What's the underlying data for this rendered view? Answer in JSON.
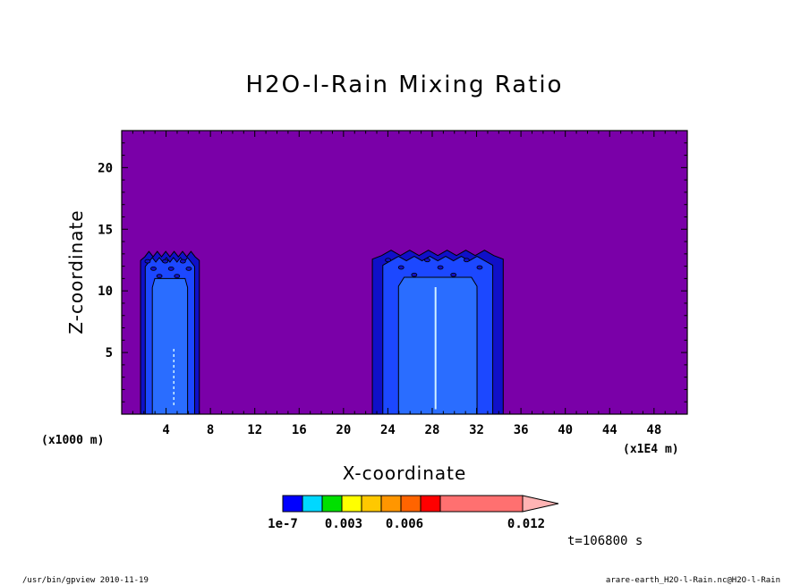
{
  "chart_data": {
    "type": "heatmap",
    "title": "H2O-l-Rain Mixing Ratio",
    "xlabel": "X-coordinate",
    "ylabel": "Z-coordinate",
    "x_unit": "(x1E4 m)",
    "y_unit": "(x1000 m)",
    "xlim": [
      0,
      51
    ],
    "ylim": [
      0,
      23
    ],
    "x_ticks": [
      4,
      8,
      12,
      16,
      20,
      24,
      28,
      32,
      36,
      40,
      44,
      48
    ],
    "y_ticks": [
      5,
      10,
      15,
      20
    ],
    "x_tick_labels": [
      "4",
      "8",
      "12",
      "16",
      "20",
      "24",
      "28",
      "32",
      "36",
      "40",
      "44",
      "48"
    ],
    "y_tick_labels": [
      "5",
      "10",
      "15",
      "20"
    ],
    "background_color": "#7a00a8",
    "colorbar": {
      "labels": [
        "1e-7",
        "0.003",
        "0.006",
        "0.012"
      ],
      "colors": [
        "#0000ff",
        "#00d8ff",
        "#00e000",
        "#ffff00",
        "#ffc800",
        "#ff9600",
        "#ff6400",
        "#ff0000",
        "#ff7070",
        "#ffb4b4"
      ]
    },
    "regions": [
      {
        "name": "left-cell",
        "x_range": [
          1.7,
          7.0
        ],
        "z_top": 13.2
      },
      {
        "name": "right-cell",
        "x_range": [
          22.6,
          34.4
        ],
        "z_top": 13.3
      }
    ],
    "time_label": "t=106800 s"
  },
  "footer": {
    "left": "/usr/bin/gpview  2010-11-19",
    "right": "arare-earth_H2O-l-Rain.nc@H2O-l-Rain"
  }
}
